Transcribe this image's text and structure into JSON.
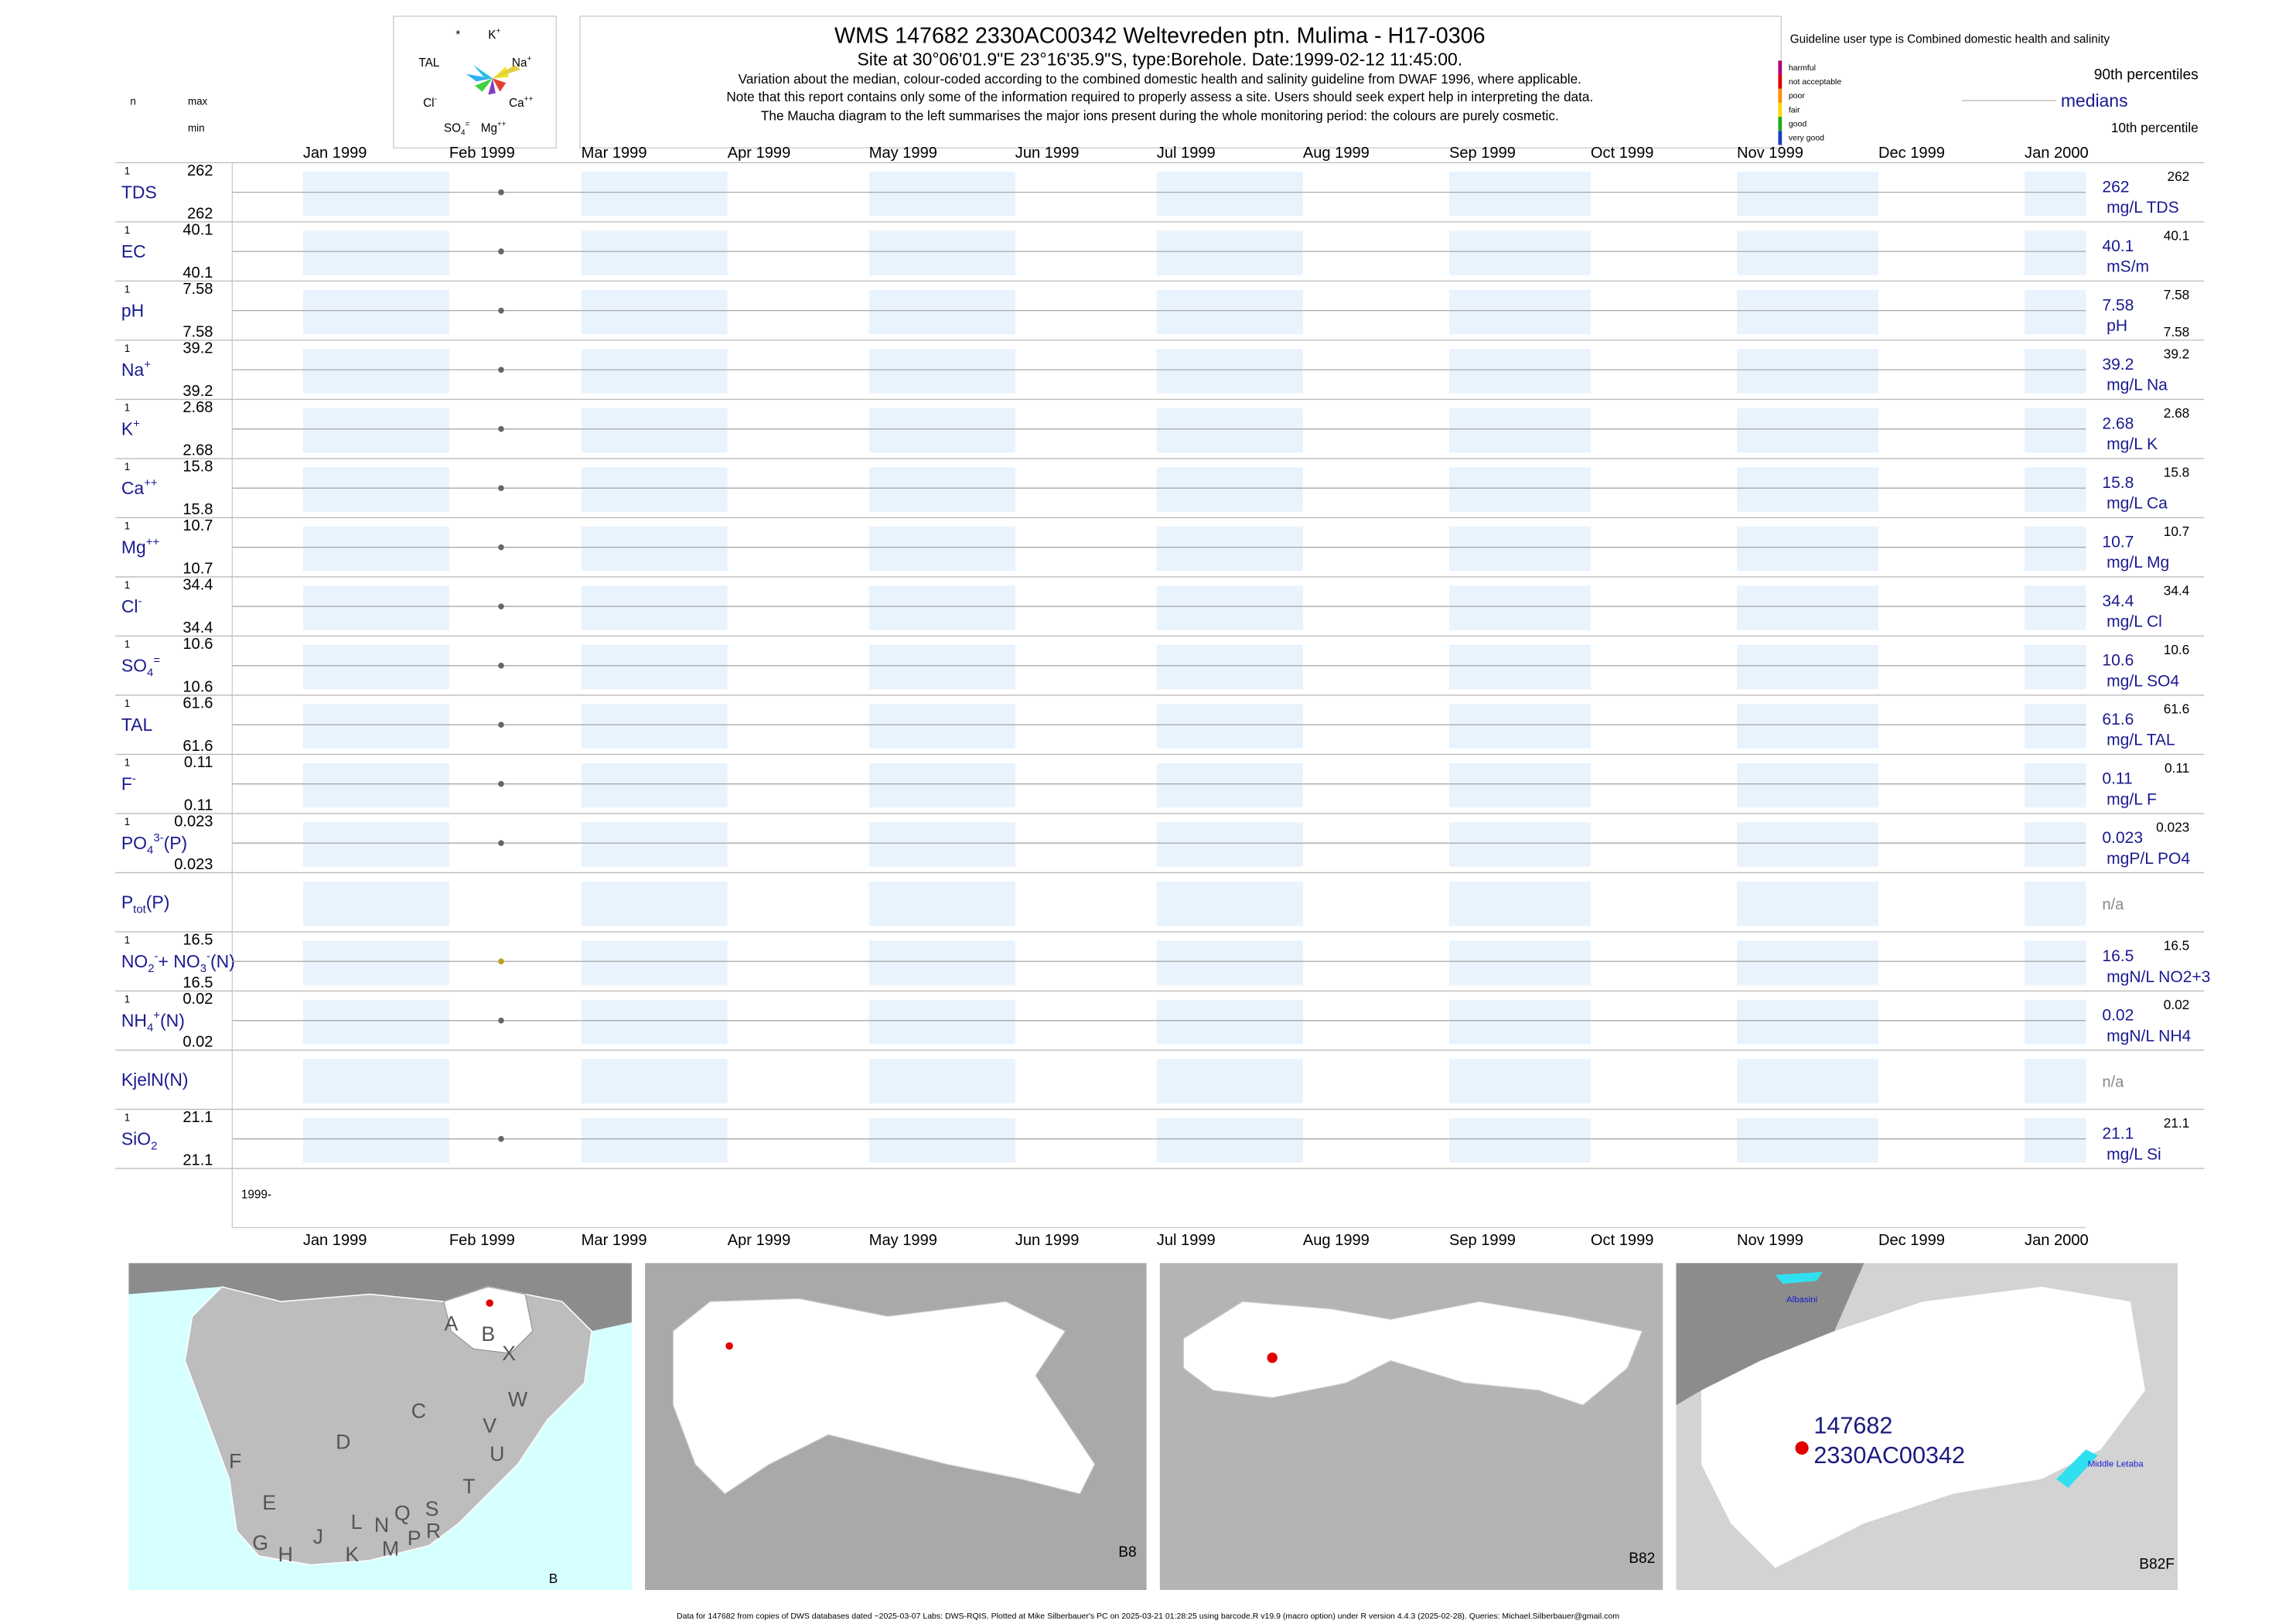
{
  "header": {
    "left": {
      "n": "n",
      "max": "max",
      "min": "min"
    },
    "title": "WMS 147682 2330AC00342 Weltevreden ptn. Mulima - H17-0306",
    "site": "Site at 30°06'01.9\"E 23°16'35.9\"S, type:Borehole. Date:1999-02-12 11:45:00.",
    "notes": [
      "Variation about the median,  colour-coded according to the combined domestic health and salinity guideline from DWAF 1996, where applicable.",
      "Note that this report contains only some of the information required to properly assess a site. Users should seek expert help in interpreting the data.",
      "The Maucha diagram to the left summarises the major ions present during the whole monitoring period: the colours are purely cosmetic."
    ]
  },
  "maucha": {
    "labels": [
      [
        {
          "text": "*"
        }
      ],
      [
        {
          "text": "K"
        },
        {
          "text": "+",
          "pos": "super"
        }
      ],
      [
        {
          "text": "TAL"
        }
      ],
      [
        {
          "text": "Na"
        },
        {
          "text": "+",
          "pos": "super"
        }
      ],
      [
        {
          "text": "Cl"
        },
        {
          "text": "-",
          "pos": "super"
        }
      ],
      [
        {
          "text": "Ca"
        },
        {
          "text": "++",
          "pos": "super"
        }
      ],
      [
        {
          "text": "SO"
        },
        {
          "text": "4",
          "pos": "sub"
        },
        {
          "text": "=",
          "pos": "super"
        }
      ],
      [
        {
          "text": "Mg"
        },
        {
          "text": "++",
          "pos": "super"
        }
      ]
    ]
  },
  "guideline": {
    "title": "Guideline user type is Combined domestic health and salinity",
    "classes": [
      {
        "label": "harmful",
        "color": "#b0007a"
      },
      {
        "label": "not acceptable",
        "color": "#e00000"
      },
      {
        "label": "poor",
        "color": "#ff8c00"
      },
      {
        "label": "fair",
        "color": "#ffd700"
      },
      {
        "label": "good",
        "color": "#1faa1f"
      },
      {
        "label": "very good",
        "color": "#1e3cc8"
      }
    ],
    "p90": "90th percentiles",
    "median": "medians",
    "p10": "10th percentile"
  },
  "plot": {
    "xlim": [
      "1998-12-17",
      "2000-01-14"
    ],
    "sample_date": "1999-02-12",
    "start_label": "1999-",
    "band_color": "#e8f3fd",
    "months": [
      {
        "value": "1999-01-01",
        "label": "Jan 1999"
      },
      {
        "value": "1999-02-01",
        "label": "Feb 1999"
      },
      {
        "value": "1999-03-01",
        "label": "Mar 1999"
      },
      {
        "value": "1999-04-01",
        "label": "Apr 1999"
      },
      {
        "value": "1999-05-01",
        "label": "May 1999"
      },
      {
        "value": "1999-06-01",
        "label": "Jun 1999"
      },
      {
        "value": "1999-07-01",
        "label": "Jul 1999"
      },
      {
        "value": "1999-08-01",
        "label": "Aug 1999"
      },
      {
        "value": "1999-09-01",
        "label": "Sep 1999"
      },
      {
        "value": "1999-10-01",
        "label": "Oct 1999"
      },
      {
        "value": "1999-11-01",
        "label": "Nov 1999"
      },
      {
        "value": "1999-12-01",
        "label": "Dec 1999"
      },
      {
        "value": "2000-01-01",
        "label": "Jan 2000"
      }
    ]
  },
  "rows": [
    {
      "label": [
        {
          "text": "TDS"
        }
      ],
      "n": 1,
      "max": 262,
      "min": 262,
      "median": 262,
      "p90": 262,
      "unit": "mg/L TDS",
      "point_color": "#666666"
    },
    {
      "label": [
        {
          "text": "EC"
        }
      ],
      "n": 1,
      "max": 40.1,
      "min": 40.1,
      "median": 40.1,
      "p90": 40.1,
      "unit": "mS/m",
      "point_color": "#666666"
    },
    {
      "label": [
        {
          "text": "pH"
        }
      ],
      "n": 1,
      "max": 7.58,
      "min": 7.58,
      "median": 7.58,
      "p90": 7.58,
      "p10": 7.58,
      "unit": "pH",
      "point_color": "#666666"
    },
    {
      "label": [
        {
          "text": "Na"
        },
        {
          "text": "+",
          "pos": "super"
        }
      ],
      "n": 1,
      "max": 39.2,
      "min": 39.2,
      "median": 39.2,
      "p90": 39.2,
      "unit": "mg/L Na",
      "point_color": "#666666"
    },
    {
      "label": [
        {
          "text": "K"
        },
        {
          "text": "+",
          "pos": "super"
        }
      ],
      "n": 1,
      "max": 2.68,
      "min": 2.68,
      "median": 2.68,
      "p90": 2.68,
      "unit": "mg/L K",
      "point_color": "#666666"
    },
    {
      "label": [
        {
          "text": "Ca"
        },
        {
          "text": "++",
          "pos": "super"
        }
      ],
      "n": 1,
      "max": 15.8,
      "min": 15.8,
      "median": 15.8,
      "p90": 15.8,
      "unit": "mg/L Ca",
      "point_color": "#666666"
    },
    {
      "label": [
        {
          "text": "Mg"
        },
        {
          "text": "++",
          "pos": "super"
        }
      ],
      "n": 1,
      "max": 10.7,
      "min": 10.7,
      "median": 10.7,
      "p90": 10.7,
      "unit": "mg/L Mg",
      "point_color": "#666666"
    },
    {
      "label": [
        {
          "text": "Cl"
        },
        {
          "text": "-",
          "pos": "super"
        }
      ],
      "n": 1,
      "max": 34.4,
      "min": 34.4,
      "median": 34.4,
      "p90": 34.4,
      "unit": "mg/L Cl",
      "point_color": "#666666"
    },
    {
      "label": [
        {
          "text": "SO"
        },
        {
          "text": "4",
          "pos": "sub"
        },
        {
          "text": "=",
          "pos": "super"
        }
      ],
      "n": 1,
      "max": 10.6,
      "min": 10.6,
      "median": 10.6,
      "p90": 10.6,
      "unit": "mg/L SO4",
      "point_color": "#666666"
    },
    {
      "label": [
        {
          "text": "TAL"
        }
      ],
      "n": 1,
      "max": 61.6,
      "min": 61.6,
      "median": 61.6,
      "p90": 61.6,
      "unit": "mg/L TAL",
      "point_color": "#666666"
    },
    {
      "label": [
        {
          "text": "F"
        },
        {
          "text": "-",
          "pos": "super"
        }
      ],
      "n": 1,
      "max": 0.11,
      "min": 0.11,
      "median": 0.11,
      "p90": 0.11,
      "unit": "mg/L F",
      "point_color": "#666666"
    },
    {
      "label": [
        {
          "text": "PO"
        },
        {
          "text": "4",
          "pos": "sub"
        },
        {
          "text": "3-",
          "pos": "super"
        },
        {
          "text": "(P)"
        }
      ],
      "n": 1,
      "max": 0.023,
      "min": 0.023,
      "median": 0.023,
      "p90": 0.023,
      "unit": "mgP/L PO4",
      "point_color": "#666666"
    },
    {
      "label": [
        {
          "text": "P"
        },
        {
          "text": "tot",
          "pos": "sub"
        },
        {
          "text": "(P)"
        }
      ],
      "status": "n/a"
    },
    {
      "label": [
        {
          "text": "NO"
        },
        {
          "text": "2",
          "pos": "sub"
        },
        {
          "text": "-",
          "pos": "super"
        },
        {
          "text": "+ NO"
        },
        {
          "text": "3",
          "pos": "sub"
        },
        {
          "text": "-",
          "pos": "super"
        },
        {
          "text": "(N)"
        }
      ],
      "n": 1,
      "max": 16.5,
      "min": 16.5,
      "median": 16.5,
      "p90": 16.5,
      "unit": "mgN/L NO2+3",
      "point_color": "#b8a020"
    },
    {
      "label": [
        {
          "text": "NH"
        },
        {
          "text": "4",
          "pos": "sub"
        },
        {
          "text": "+",
          "pos": "super"
        },
        {
          "text": "(N)"
        }
      ],
      "n": 1,
      "max": 0.02,
      "min": 0.02,
      "median": 0.02,
      "p90": 0.02,
      "unit": "mgN/L NH4",
      "point_color": "#666666"
    },
    {
      "label": [
        {
          "text": "KjelN(N)"
        }
      ],
      "status": "n/a"
    },
    {
      "label": [
        {
          "text": "SiO"
        },
        {
          "text": "2",
          "pos": "sub"
        }
      ],
      "n": 1,
      "max": 21.1,
      "min": 21.1,
      "median": 21.1,
      "p90": 21.1,
      "unit": "mg/L Si",
      "point_color": "#666666"
    }
  ],
  "maps": [
    {
      "labels": [
        "A",
        "B",
        "X",
        "C",
        "W",
        "D",
        "V",
        "U",
        "F",
        "T",
        "E",
        "S",
        "G",
        "H",
        "J",
        "K",
        "L",
        "N",
        "Q",
        "M",
        "P",
        "R",
        "B"
      ]
    },
    {
      "labels": [
        "B8"
      ]
    },
    {
      "labels": [
        "B82"
      ]
    },
    {
      "labels": [
        "Albasini",
        "Middle Letaba",
        "147682",
        "2330AC00342",
        "B82F"
      ]
    }
  ],
  "footer": "Data for 147682 from copies of DWS databases dated ~2025-03-07 Labs: DWS-RQIS. Plotted at Mike Silberbauer's PC on 2025-03-21 01:28:25 using barcode.R v19.9 (macro option) under R version 4.4.3 (2025-02-28). Queries: Michael.Silberbauer@gmail.com"
}
